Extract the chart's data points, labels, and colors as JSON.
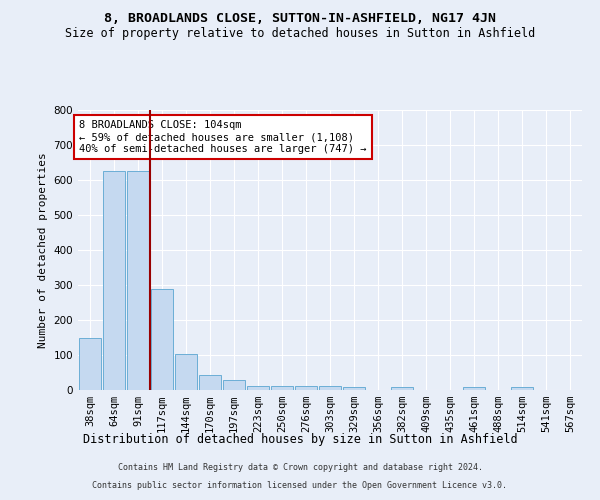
{
  "title": "8, BROADLANDS CLOSE, SUTTON-IN-ASHFIELD, NG17 4JN",
  "subtitle": "Size of property relative to detached houses in Sutton in Ashfield",
  "xlabel": "Distribution of detached houses by size in Sutton in Ashfield",
  "ylabel": "Number of detached properties",
  "footer_line1": "Contains HM Land Registry data © Crown copyright and database right 2024.",
  "footer_line2": "Contains public sector information licensed under the Open Government Licence v3.0.",
  "bin_labels": [
    "38sqm",
    "64sqm",
    "91sqm",
    "117sqm",
    "144sqm",
    "170sqm",
    "197sqm",
    "223sqm",
    "250sqm",
    "276sqm",
    "303sqm",
    "329sqm",
    "356sqm",
    "382sqm",
    "409sqm",
    "435sqm",
    "461sqm",
    "488sqm",
    "514sqm",
    "541sqm",
    "567sqm"
  ],
  "bar_values": [
    148,
    625,
    625,
    290,
    102,
    42,
    30,
    12,
    12,
    12,
    12,
    10,
    0,
    10,
    0,
    0,
    10,
    0,
    10,
    0,
    0
  ],
  "bar_color": "#c5d9f0",
  "bar_edge_color": "#6baed6",
  "background_color": "#e8eef8",
  "plot_bg_color": "#e8eef8",
  "grid_color": "#ffffff",
  "red_line_x": 2.5,
  "annotation_text": "8 BROADLANDS CLOSE: 104sqm\n← 59% of detached houses are smaller (1,108)\n40% of semi-detached houses are larger (747) →",
  "annotation_box_color": "#ffffff",
  "annotation_box_edge": "#cc0000",
  "red_line_color": "#990000",
  "ylim": [
    0,
    800
  ],
  "yticks": [
    0,
    100,
    200,
    300,
    400,
    500,
    600,
    700,
    800
  ],
  "title_fontsize": 9.5,
  "subtitle_fontsize": 8.5,
  "xlabel_fontsize": 8.5,
  "ylabel_fontsize": 8,
  "tick_fontsize": 7.5,
  "annotation_fontsize": 7.5,
  "footer_fontsize": 6
}
